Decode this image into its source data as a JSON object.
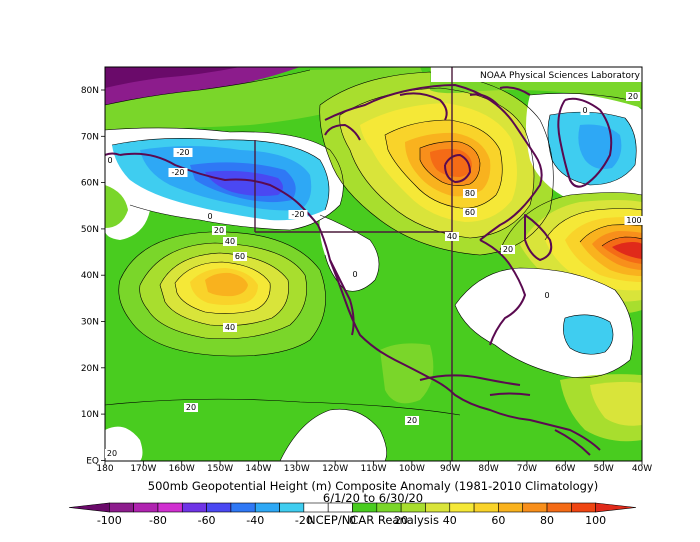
{
  "header": {
    "lab": "NOAA Physical Sciences Laboratory"
  },
  "title": {
    "line1": "500mb Geopotential Height (m) Composite Anomaly (1981-2010 Climatology)",
    "line2": "6/1/20  to 6/30/20",
    "line3": "NCEP/NCAR Reanalysis"
  },
  "lat_labels": [
    "80N",
    "70N",
    "60N",
    "50N",
    "40N",
    "30N",
    "20N",
    "10N",
    "EQ"
  ],
  "lon_labels": [
    "180",
    "170W",
    "160W",
    "150W",
    "140W",
    "130W",
    "120W",
    "110W",
    "100W",
    "90W",
    "80W",
    "70W",
    "60W",
    "50W",
    "40W"
  ],
  "contour_labels": [
    "20",
    "0",
    "-20",
    "-20",
    "-20",
    "0",
    "20",
    "40",
    "60",
    "40",
    "0",
    "20",
    "80",
    "60",
    "40",
    "0",
    "100",
    "20",
    "0",
    "20",
    "20"
  ],
  "colorbar": {
    "ticks": [
      "-100",
      "-80",
      "-60",
      "-40",
      "-20",
      "0",
      "20",
      "40",
      "60",
      "80",
      "100"
    ],
    "colors": [
      "#6a0a6a",
      "#8c1c8c",
      "#b023b0",
      "#d02fd0",
      "#6f34e6",
      "#4a48f2",
      "#2f78f5",
      "#2ea8f5",
      "#3fcdf0",
      "#ffffff",
      "#ffffff",
      "#49cc1f",
      "#7ad62a",
      "#a8de2e",
      "#d9e43a",
      "#f5e837",
      "#f9d32a",
      "#f9b21e",
      "#f88f1b",
      "#f46b16",
      "#ef4512",
      "#e02a1a"
    ]
  },
  "field_colors": {
    "neg100": "#6a0a6a",
    "neg60": "#b023b0",
    "neg40": "#4a48f2",
    "neg20": "#2f78f5",
    "neg10": "#3fcdf0",
    "zero": "#ffffff",
    "p10": "#49cc1f",
    "p20": "#7ad62a",
    "p30": "#a8de2e",
    "p40": "#d9e43a",
    "p50": "#f5e837",
    "p60": "#f9d32a",
    "p70": "#f9b21e",
    "p80": "#f88f1b",
    "p90": "#f46b16",
    "p100": "#e02a1a",
    "coast": "#5a0a50"
  }
}
